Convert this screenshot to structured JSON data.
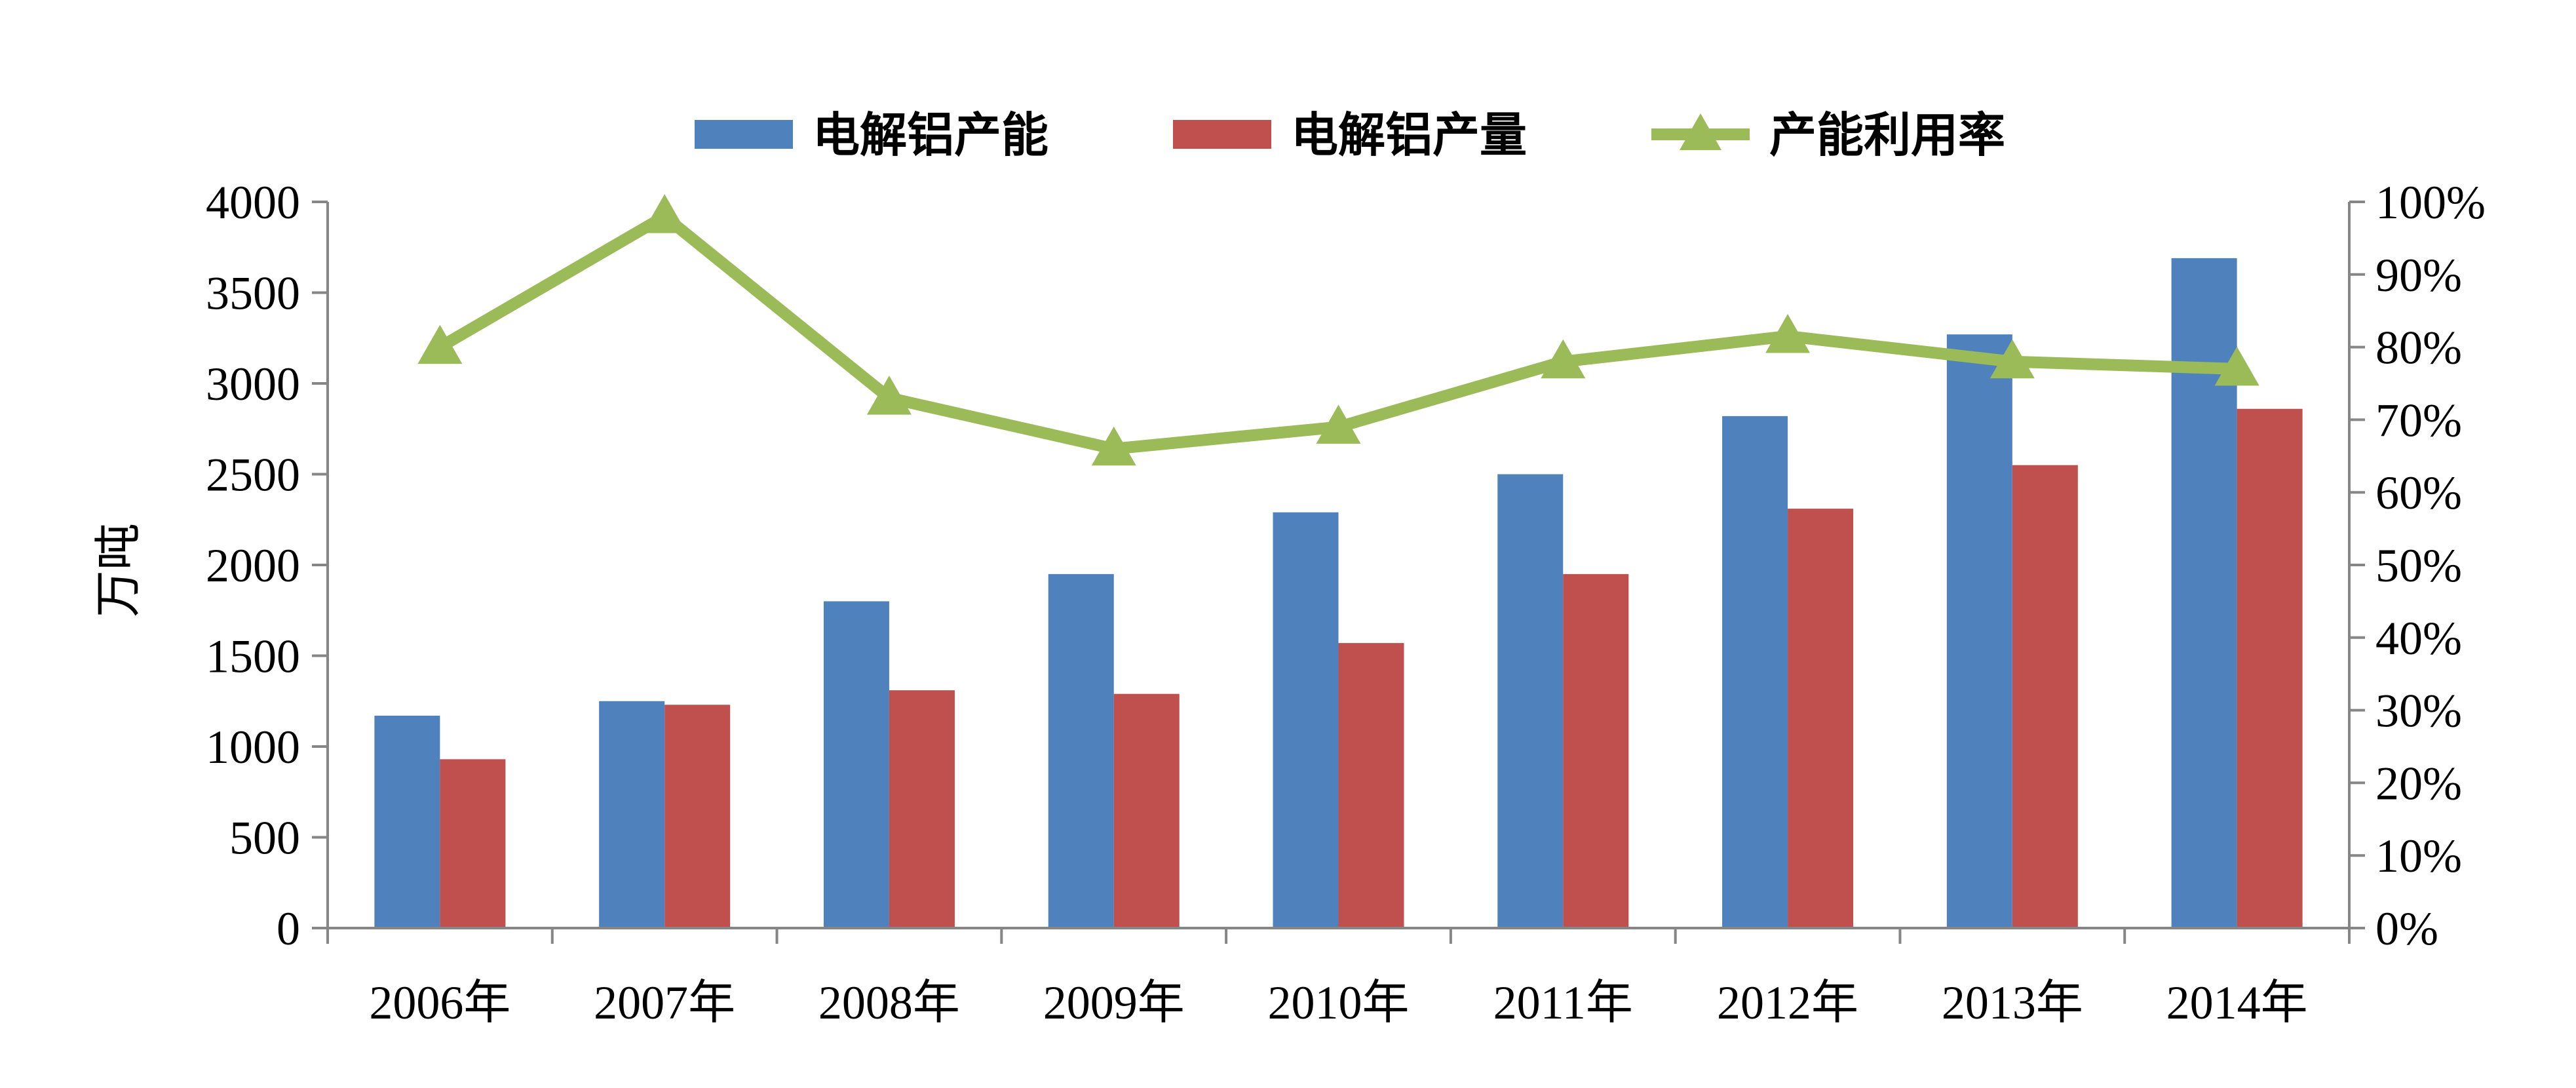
{
  "chart_data": {
    "type": "bar",
    "categories": [
      "2006年",
      "2007年",
      "2008年",
      "2009年",
      "2010年",
      "2011年",
      "2012年",
      "2013年",
      "2014年"
    ],
    "series": [
      {
        "name": "电解铝产能",
        "type": "bar",
        "axis": "left",
        "color": "#4F81BD",
        "values": [
          1170,
          1250,
          1800,
          1950,
          2290,
          2500,
          2820,
          3270,
          3690
        ]
      },
      {
        "name": "电解铝产量",
        "type": "bar",
        "axis": "left",
        "color": "#C0504D",
        "values": [
          930,
          1230,
          1310,
          1290,
          1570,
          1950,
          2310,
          2550,
          2860
        ]
      },
      {
        "name": "产能利用率",
        "type": "line",
        "axis": "right",
        "color": "#9BBB59",
        "marker": "triangle",
        "values": [
          80,
          98,
          73,
          66,
          69,
          78,
          81.5,
          78,
          77
        ]
      }
    ],
    "ylabel": "万吨",
    "ylim": [
      0,
      4000
    ],
    "yticks": [
      "0",
      "500",
      "1000",
      "1500",
      "2000",
      "2500",
      "3000",
      "3500",
      "4000"
    ],
    "y2lim": [
      0,
      100
    ],
    "y2ticks": [
      "0%",
      "10%",
      "20%",
      "30%",
      "40%",
      "50%",
      "60%",
      "70%",
      "80%",
      "90%",
      "100%"
    ],
    "legend_position": "top-center",
    "grid": false
  }
}
